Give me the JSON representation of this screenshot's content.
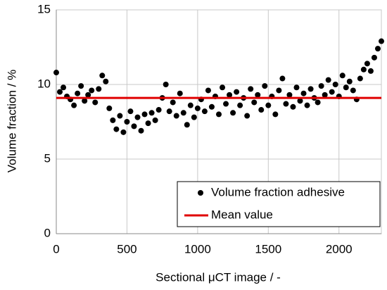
{
  "chart_data": {
    "type": "scatter",
    "xlabel": "Sectional μCT image / -",
    "ylabel": "Volume fraction / %",
    "xlim": [
      0,
      2300
    ],
    "xticks": [
      0,
      500,
      1000,
      1500,
      2000
    ],
    "ylim": [
      0,
      15
    ],
    "yticks": [
      0,
      5,
      10,
      15
    ],
    "grid": true,
    "legend": "lower right",
    "series": [
      {
        "name": "Volume fraction adhesive",
        "color": "#000000",
        "marker": "dot",
        "x": [
          0,
          25,
          50,
          75,
          100,
          125,
          150,
          175,
          200,
          225,
          250,
          275,
          300,
          325,
          350,
          375,
          400,
          425,
          450,
          475,
          500,
          525,
          550,
          575,
          600,
          625,
          650,
          675,
          700,
          725,
          750,
          775,
          800,
          825,
          850,
          875,
          900,
          925,
          950,
          975,
          1000,
          1025,
          1050,
          1075,
          1100,
          1125,
          1150,
          1175,
          1200,
          1225,
          1250,
          1275,
          1300,
          1325,
          1350,
          1375,
          1400,
          1425,
          1450,
          1475,
          1500,
          1525,
          1550,
          1575,
          1600,
          1625,
          1650,
          1675,
          1700,
          1725,
          1750,
          1775,
          1800,
          1825,
          1850,
          1875,
          1900,
          1925,
          1950,
          1975,
          2000,
          2025,
          2050,
          2075,
          2100,
          2125,
          2150,
          2175,
          2200,
          2225,
          2250,
          2275,
          2300
        ],
        "values": [
          10.8,
          9.5,
          9.8,
          9.2,
          9.0,
          8.6,
          9.4,
          9.9,
          8.9,
          9.3,
          9.6,
          8.8,
          9.7,
          10.6,
          10.2,
          8.4,
          7.6,
          7.0,
          7.9,
          6.8,
          7.5,
          8.2,
          7.2,
          7.8,
          6.9,
          8.0,
          7.4,
          8.1,
          7.6,
          8.3,
          9.1,
          10.0,
          8.2,
          8.8,
          7.9,
          9.4,
          8.1,
          7.3,
          8.6,
          7.8,
          8.4,
          9.0,
          8.2,
          9.6,
          8.5,
          9.2,
          8.0,
          9.8,
          8.7,
          9.3,
          8.1,
          9.5,
          8.6,
          9.1,
          7.9,
          9.7,
          8.8,
          9.3,
          8.3,
          9.9,
          8.6,
          9.2,
          8.0,
          9.6,
          10.4,
          8.7,
          9.3,
          8.5,
          9.8,
          8.9,
          9.4,
          8.6,
          9.7,
          9.1,
          8.8,
          9.9,
          9.3,
          10.3,
          9.5,
          10.0,
          9.2,
          10.6,
          9.8,
          10.2,
          9.6,
          9.0,
          10.4,
          11.0,
          11.4,
          10.9,
          11.8,
          12.4,
          12.9
        ]
      },
      {
        "name": "Mean value",
        "color": "#e00000",
        "marker": "line",
        "x": [
          0,
          2300
        ],
        "values": [
          9.1,
          9.1
        ]
      }
    ]
  }
}
